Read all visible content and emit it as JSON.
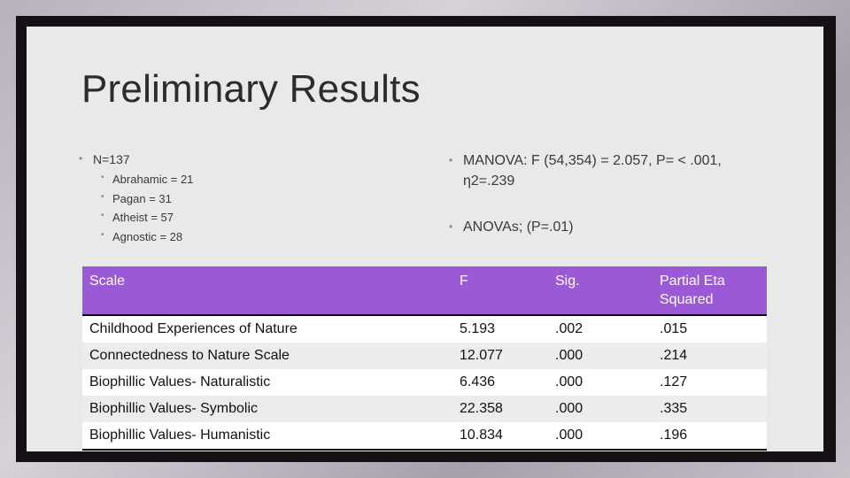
{
  "slide": {
    "title": "Preliminary Results",
    "left_bullets": {
      "main": "N=137",
      "sub": [
        "Abrahamic = 21",
        "Pagan = 31",
        "Atheist = 57",
        "Agnostic = 28"
      ]
    },
    "right_bullets": {
      "manova_line1": "MANOVA: F (54,354) = 2.057, P= < .001,",
      "manova_line2": "η2=.239",
      "anova": "ANOVAs; (P=.01)"
    }
  },
  "table": {
    "headers": [
      "Scale",
      "F",
      "Sig.",
      "Partial Eta Squared"
    ],
    "rows": [
      [
        "Childhood Experiences of Nature",
        "5.193",
        ".002",
        ".015"
      ],
      [
        "Connectedness to Nature Scale",
        "12.077",
        ".000",
        ".214"
      ],
      [
        "Biophillic Values- Naturalistic",
        "6.436",
        ".000",
        ".127"
      ],
      [
        "Biophillic Values- Symbolic",
        "22.358",
        ".000",
        ".335"
      ],
      [
        "Biophillic Values- Humanistic",
        "10.834",
        ".000",
        ".196"
      ]
    ]
  },
  "colors": {
    "header_bg": "#9b59d6",
    "slide_bg": "#e9e9e9",
    "frame": "#141014"
  }
}
